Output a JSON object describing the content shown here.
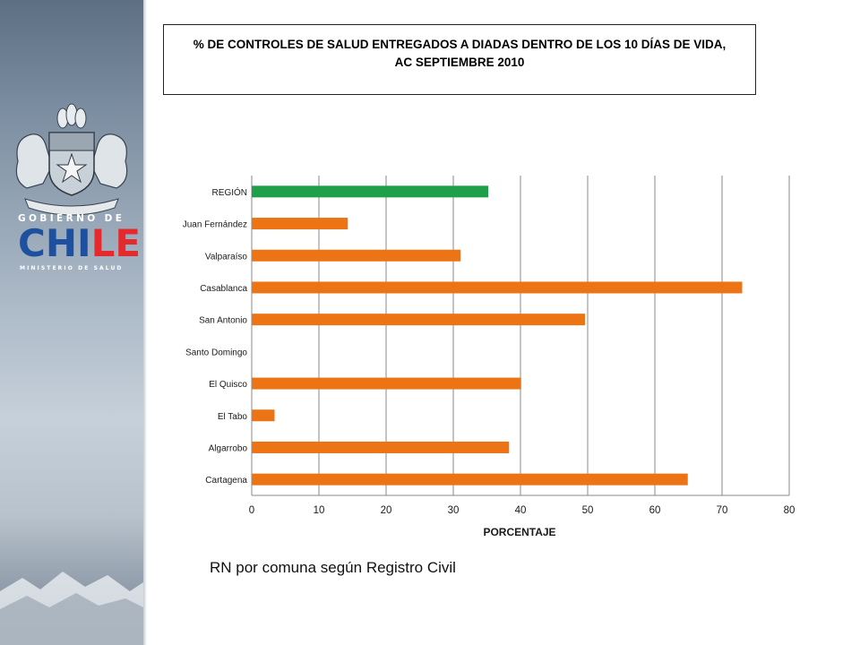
{
  "logo": {
    "line1": "GOBIERNO DE",
    "chile_part1": "CHI",
    "chile_part2": "LE",
    "line3": "MINISTERIO DE SALUD"
  },
  "title": "% DE CONTROLES DE SALUD ENTREGADOS A DIADAS DENTRO DE LOS 10 DÍAS DE VIDA,\nAC   SEPTIEMBRE 2010",
  "caption": "RN  por comuna según Registro Civil",
  "colors": {
    "region_bar": "#1ea04b",
    "comuna_bar": "#ec7414",
    "grid": "#8a8a8a"
  },
  "chart_data": {
    "type": "bar",
    "orientation": "horizontal",
    "categories": [
      "REGIÓN",
      "Juan Fernández",
      "Valparaíso",
      "Casablanca",
      "San Antonio",
      "Santo Domingo",
      "El Quisco",
      "El Tabo",
      "Algarrobo",
      "Cartagena"
    ],
    "values": [
      35.2,
      14.3,
      31.1,
      73.0,
      49.6,
      0,
      40.1,
      3.4,
      38.3,
      64.9
    ],
    "bar_colors": [
      "#1ea04b",
      "#ec7414",
      "#ec7414",
      "#ec7414",
      "#ec7414",
      "#ec7414",
      "#ec7414",
      "#ec7414",
      "#ec7414",
      "#ec7414"
    ],
    "xlabel": "PORCENTAJE",
    "ylabel": "",
    "xlim": [
      0,
      80
    ],
    "xticks": [
      0,
      10,
      20,
      30,
      40,
      50,
      60,
      70,
      80
    ],
    "grid": true
  }
}
